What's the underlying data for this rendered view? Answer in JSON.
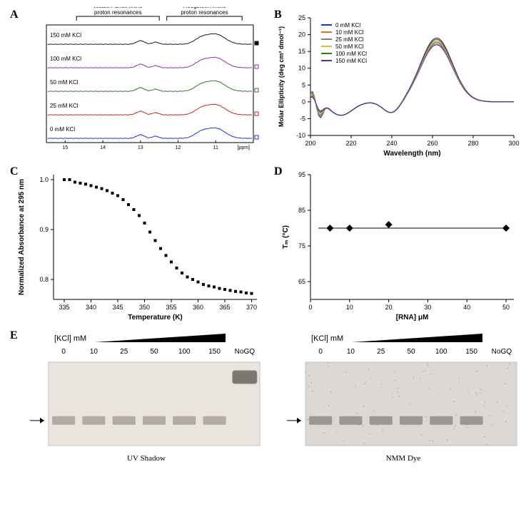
{
  "panelA": {
    "label": "A",
    "anno_left": "Watson-Crick imino\nproton resonances",
    "anno_right": "Hoogsteen imino\nproton resonances",
    "xaxis_label": "[ppm]",
    "xticks": [
      15,
      14,
      13,
      12,
      11
    ],
    "traces": [
      {
        "label": "150 mM KCl",
        "color": "#1a1a1a"
      },
      {
        "label": "100 mM KCl",
        "color": "#8a2db0"
      },
      {
        "label": "50 mM KCl",
        "color": "#2a7a2a"
      },
      {
        "label": "25 mM KCl",
        "color": "#d02020"
      },
      {
        "label": "0 mM KCl",
        "color": "#2030d0"
      }
    ],
    "trace_fontsize": 8,
    "bracket_color": "#000000",
    "linewidth": 1
  },
  "panelB": {
    "label": "B",
    "xaxis_label": "Wavelength (nm)",
    "yaxis_label": "Molar Ellipticity (deg cm² dmol⁻¹)",
    "xlim": [
      200,
      300
    ],
    "ylim": [
      -10,
      25
    ],
    "xticks": [
      200,
      220,
      240,
      260,
      280,
      300
    ],
    "yticks": [
      -10,
      -5,
      0,
      5,
      10,
      15,
      20,
      25
    ],
    "series": [
      {
        "label": "0 mM KCl",
        "color": "#2030d0"
      },
      {
        "label": "10 mM KCl",
        "color": "#e07020"
      },
      {
        "label": "25 mM KCl",
        "color": "#808080"
      },
      {
        "label": "50 mM KCl",
        "color": "#d0c030"
      },
      {
        "label": "100 mM KCl",
        "color": "#2a7a2a"
      },
      {
        "label": "150 mM KCl",
        "color": "#5a2d9a"
      }
    ],
    "label_fontsize": 10,
    "tick_fontsize": 9,
    "line_width": 1.2
  },
  "panelC": {
    "label": "C",
    "xaxis_label": "Temperature (K)",
    "yaxis_label": "Normalized Absorbance at 295 nm",
    "xlim": [
      333,
      371
    ],
    "ylim": [
      0.76,
      1.01
    ],
    "xticks": [
      335,
      340,
      345,
      350,
      355,
      360,
      365,
      370
    ],
    "yticks": [
      0.8,
      0.9,
      1.0
    ],
    "ytick_labels": [
      "0.8",
      "0.9",
      "1.0"
    ],
    "marker": "square",
    "marker_size": 4,
    "marker_color": "#000000",
    "data": [
      [
        335,
        1.0
      ],
      [
        336,
        1.0
      ],
      [
        337,
        0.995
      ],
      [
        338,
        0.993
      ],
      [
        339,
        0.991
      ],
      [
        340,
        0.988
      ],
      [
        341,
        0.985
      ],
      [
        342,
        0.982
      ],
      [
        343,
        0.978
      ],
      [
        344,
        0.973
      ],
      [
        345,
        0.968
      ],
      [
        346,
        0.96
      ],
      [
        347,
        0.95
      ],
      [
        348,
        0.94
      ],
      [
        349,
        0.928
      ],
      [
        350,
        0.913
      ],
      [
        351,
        0.895
      ],
      [
        352,
        0.878
      ],
      [
        353,
        0.862
      ],
      [
        354,
        0.848
      ],
      [
        355,
        0.835
      ],
      [
        356,
        0.823
      ],
      [
        357,
        0.813
      ],
      [
        358,
        0.805
      ],
      [
        359,
        0.8
      ],
      [
        360,
        0.795
      ],
      [
        361,
        0.79
      ],
      [
        362,
        0.787
      ],
      [
        363,
        0.785
      ],
      [
        364,
        0.782
      ],
      [
        365,
        0.78
      ],
      [
        366,
        0.778
      ],
      [
        367,
        0.776
      ],
      [
        368,
        0.775
      ],
      [
        369,
        0.773
      ],
      [
        370,
        0.772
      ]
    ]
  },
  "panelD": {
    "label": "D",
    "xaxis_label": "[RNA] μM",
    "yaxis_label": "Tₘ (°C)",
    "xlim": [
      0,
      52
    ],
    "ylim": [
      60,
      95
    ],
    "xticks": [
      0,
      10,
      20,
      30,
      40,
      50
    ],
    "yticks": [
      65,
      75,
      85,
      95
    ],
    "marker": "diamond",
    "marker_size": 5,
    "marker_color": "#000000",
    "line_color": "#000000",
    "data": [
      [
        5,
        80
      ],
      [
        10,
        80
      ],
      [
        20,
        81
      ],
      [
        50,
        80
      ]
    ],
    "fitline_y": 80
  },
  "panelE": {
    "label": "E",
    "wedge_label": "[KCl] mM",
    "lanes": [
      "0",
      "10",
      "25",
      "50",
      "100",
      "150",
      "NoGQ"
    ],
    "left_caption": "UV Shadow",
    "right_caption": "NMM Dye",
    "arrow_color": "#000000",
    "gel_bg_left": "#eae4de",
    "gel_bg_right": "#dcd7d2",
    "band_color": "#9a928a",
    "band_dark_color": "#6b635b"
  }
}
